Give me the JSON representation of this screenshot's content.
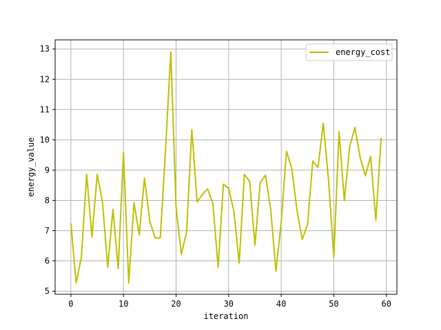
{
  "chart_data": {
    "type": "line",
    "title": "",
    "xlabel": "iteration",
    "ylabel": "energy_value",
    "xlim": [
      -3,
      62
    ],
    "ylim": [
      4.9,
      13.3
    ],
    "xticks": [
      0,
      10,
      20,
      30,
      40,
      50,
      60
    ],
    "yticks": [
      5,
      6,
      7,
      8,
      9,
      10,
      11,
      12,
      13
    ],
    "grid": true,
    "legend_position": "top-right",
    "series": [
      {
        "name": "energy_cost",
        "color": "#bfbf00",
        "x": [
          0,
          1,
          2,
          3,
          4,
          5,
          6,
          7,
          8,
          9,
          10,
          11,
          12,
          13,
          14,
          15,
          16,
          17,
          18,
          19,
          20,
          21,
          22,
          23,
          24,
          25,
          26,
          27,
          28,
          29,
          30,
          31,
          32,
          33,
          34,
          35,
          36,
          37,
          38,
          39,
          40,
          41,
          42,
          43,
          44,
          45,
          46,
          47,
          48,
          49,
          50,
          51,
          52,
          53,
          54,
          55,
          56,
          57,
          58,
          59
        ],
        "values": [
          7.24,
          5.27,
          6.13,
          8.86,
          6.79,
          8.86,
          7.95,
          5.79,
          7.71,
          5.74,
          9.58,
          5.27,
          7.93,
          6.86,
          8.74,
          7.32,
          6.76,
          6.76,
          9.68,
          12.9,
          7.78,
          6.22,
          6.96,
          10.33,
          7.95,
          8.19,
          8.38,
          7.9,
          5.79,
          8.53,
          8.4,
          7.64,
          5.93,
          8.86,
          8.62,
          6.52,
          8.58,
          8.83,
          7.71,
          5.66,
          7.28,
          9.62,
          9.06,
          7.67,
          6.71,
          7.2,
          9.3,
          9.09,
          10.55,
          8.67,
          6.13,
          10.27,
          7.99,
          9.75,
          10.41,
          9.43,
          8.81,
          9.45,
          7.34,
          10.07
        ]
      }
    ]
  }
}
